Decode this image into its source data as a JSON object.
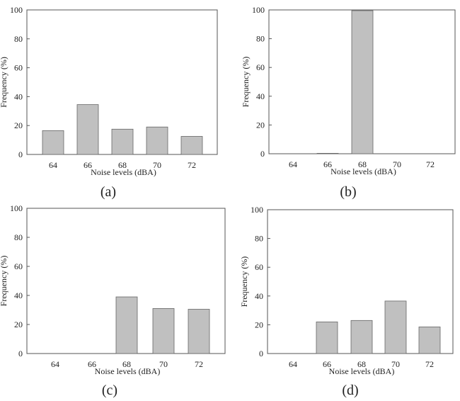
{
  "chart_data": [
    {
      "type": "bar",
      "panel_label": "(a)",
      "xlabel": "Noise levels (dBA)",
      "ylabel": "Frequency (%)",
      "categories": [
        "64",
        "66",
        "68",
        "70",
        "72"
      ],
      "values": [
        16.5,
        34.5,
        17.5,
        19,
        12.5
      ],
      "ylim": [
        0,
        100
      ],
      "yticks": [
        0,
        20,
        40,
        60,
        80,
        100
      ],
      "grid": false,
      "bar_color": "#c0c0c0"
    },
    {
      "type": "bar",
      "panel_label": "(b)",
      "xlabel": "Noise levels (dBA)",
      "ylabel": "Frequency (%)",
      "categories": [
        "64",
        "66",
        "68",
        "70",
        "72"
      ],
      "values": [
        0,
        0.3,
        99.5,
        0,
        0
      ],
      "ylim": [
        0,
        100
      ],
      "yticks": [
        0,
        20,
        40,
        60,
        80,
        100
      ],
      "grid": false,
      "bar_color": "#c0c0c0"
    },
    {
      "type": "bar",
      "panel_label": "(c)",
      "xlabel": "Noise levels (dBA)",
      "ylabel": "Frequency (%)",
      "categories": [
        "64",
        "66",
        "68",
        "70",
        "72"
      ],
      "values": [
        0,
        0,
        39,
        31,
        30.5
      ],
      "ylim": [
        0,
        100
      ],
      "yticks": [
        0,
        20,
        40,
        60,
        80,
        100
      ],
      "grid": false,
      "bar_color": "#c0c0c0"
    },
    {
      "type": "bar",
      "panel_label": "(d)",
      "xlabel": "Noise levels (dBA)",
      "ylabel": "Frequency (%)",
      "categories": [
        "64",
        "66",
        "68",
        "70",
        "72"
      ],
      "values": [
        0,
        22,
        23,
        36.5,
        18.5
      ],
      "ylim": [
        0,
        100
      ],
      "yticks": [
        0,
        20,
        40,
        60,
        80,
        100
      ],
      "grid": false,
      "bar_color": "#c0c0c0"
    }
  ]
}
